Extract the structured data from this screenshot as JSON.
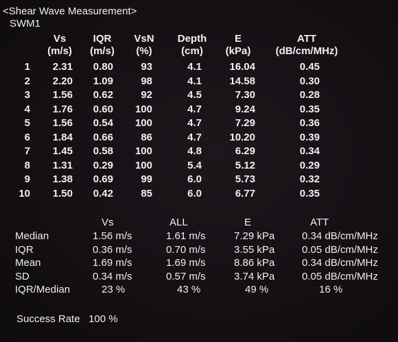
{
  "header": {
    "title": "<Shear Wave Measurement>",
    "subtitle": "SWM1"
  },
  "measurements": {
    "columns": [
      {
        "name": "Vs",
        "unit": "(m/s)"
      },
      {
        "name": "IQR",
        "unit": "(m/s)"
      },
      {
        "name": "VsN",
        "unit": "(%)"
      },
      {
        "name": "Depth",
        "unit": "(cm)"
      },
      {
        "name": "E",
        "unit": "(kPa)"
      },
      {
        "name": "ATT",
        "unit": "(dB/cm/MHz)"
      }
    ],
    "rows": [
      {
        "n": "1",
        "vs": "2.31",
        "iqr": "0.80",
        "vsn": "93",
        "depth": "4.1",
        "e": "16.04",
        "att": "0.45"
      },
      {
        "n": "2",
        "vs": "2.20",
        "iqr": "1.09",
        "vsn": "98",
        "depth": "4.1",
        "e": "14.58",
        "att": "0.30"
      },
      {
        "n": "3",
        "vs": "1.56",
        "iqr": "0.62",
        "vsn": "92",
        "depth": "4.5",
        "e": "7.30",
        "att": "0.28"
      },
      {
        "n": "4",
        "vs": "1.76",
        "iqr": "0.60",
        "vsn": "100",
        "depth": "4.7",
        "e": "9.24",
        "att": "0.35"
      },
      {
        "n": "5",
        "vs": "1.56",
        "iqr": "0.54",
        "vsn": "100",
        "depth": "4.7",
        "e": "7.29",
        "att": "0.36"
      },
      {
        "n": "6",
        "vs": "1.84",
        "iqr": "0.66",
        "vsn": "86",
        "depth": "4.7",
        "e": "10.20",
        "att": "0.39"
      },
      {
        "n": "7",
        "vs": "1.45",
        "iqr": "0.58",
        "vsn": "100",
        "depth": "4.8",
        "e": "6.29",
        "att": "0.34"
      },
      {
        "n": "8",
        "vs": "1.31",
        "iqr": "0.29",
        "vsn": "100",
        "depth": "5.4",
        "e": "5.12",
        "att": "0.29"
      },
      {
        "n": "9",
        "vs": "1.38",
        "iqr": "0.69",
        "vsn": "99",
        "depth": "6.0",
        "e": "5.73",
        "att": "0.32"
      },
      {
        "n": "10",
        "vs": "1.50",
        "iqr": "0.42",
        "vsn": "85",
        "depth": "6.0",
        "e": "6.77",
        "att": "0.35"
      }
    ]
  },
  "summary": {
    "headers": {
      "vs": "Vs",
      "all": "ALL",
      "e": "E",
      "att": "ATT"
    },
    "rows": [
      {
        "label": "Median",
        "vs": "1.56 m/s",
        "all": "1.61 m/s",
        "e": "7.29 kPa",
        "att": "0.34 dB/cm/MHz"
      },
      {
        "label": "IQR",
        "vs": "0.36 m/s",
        "all": "0.70 m/s",
        "e": "3.55 kPa",
        "att": "0.05 dB/cm/MHz"
      },
      {
        "label": "Mean",
        "vs": "1.69 m/s",
        "all": "1.69 m/s",
        "e": "8.86 kPa",
        "att": "0.34 dB/cm/MHz"
      },
      {
        "label": "SD",
        "vs": "0.34 m/s",
        "all": "0.57 m/s",
        "e": "3.74 kPa",
        "att": "0.05 dB/cm/MHz"
      },
      {
        "label": "IQR/Median",
        "vs": "23 %",
        "all": "43 %",
        "e": "49 %",
        "att": "16 %"
      }
    ]
  },
  "footer": {
    "label": "Success Rate",
    "value": "100 %"
  }
}
